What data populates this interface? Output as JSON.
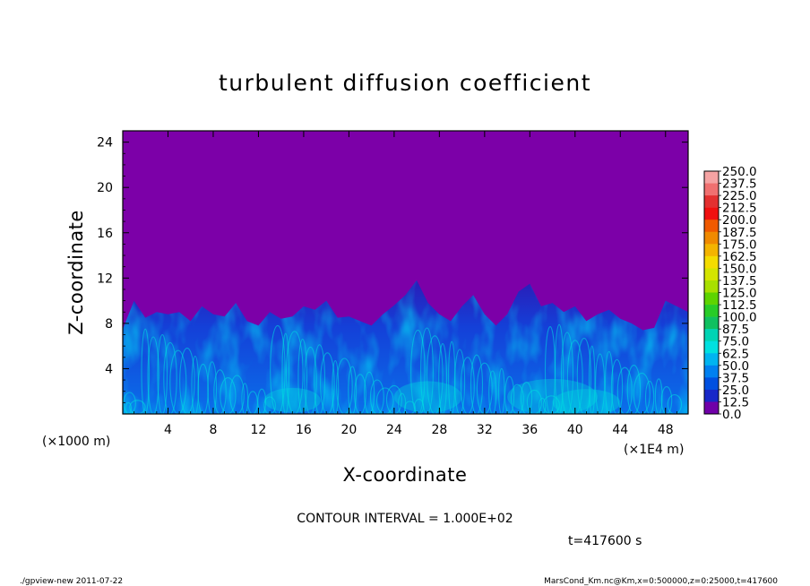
{
  "chart_data": {
    "type": "heatmap",
    "title": "turbulent diffusion coefficient",
    "xlabel": "X-coordinate",
    "ylabel": "Z-coordinate",
    "x_unit_left": "(×1000 m)",
    "x_unit_right": "(×1E4 m)",
    "x_ticks": [
      4,
      8,
      12,
      16,
      20,
      24,
      28,
      32,
      36,
      40,
      44,
      48
    ],
    "y_ticks": [
      4,
      8,
      12,
      16,
      20,
      24
    ],
    "xlim": [
      0,
      50
    ],
    "ylim": [
      0,
      25
    ],
    "colorbar": {
      "levels": [
        "250.0",
        "237.5",
        "225.0",
        "212.5",
        "200.0",
        "187.5",
        "175.0",
        "162.5",
        "150.0",
        "137.5",
        "125.0",
        "112.5",
        "100.0",
        "87.5",
        "75.0",
        "62.5",
        "50.0",
        "37.5",
        "25.0",
        "12.5",
        "0.0"
      ],
      "colors": [
        "#f5a3a3",
        "#f07070",
        "#e33030",
        "#f01010",
        "#f05a00",
        "#f08a00",
        "#f4b400",
        "#f4dc00",
        "#d4e400",
        "#a8e000",
        "#5ed400",
        "#28cc28",
        "#10c060",
        "#00d4b4",
        "#00e0e0",
        "#00b4f0",
        "#0080f0",
        "#0050e0",
        "#1828c8",
        "#3c10b0",
        "#7000a8"
      ]
    },
    "background_color": "#7c00a8",
    "field_description_colors": {
      "low": "#7c00a8",
      "mid_low": "#1a2ac8",
      "mid": "#0a60e8",
      "high": "#00e0e0"
    },
    "turbulent_layer_top_profile": [
      [
        0,
        7.5
      ],
      [
        1,
        10
      ],
      [
        2,
        8.5
      ],
      [
        3,
        9
      ],
      [
        4,
        8.8
      ],
      [
        5,
        9
      ],
      [
        6,
        8.2
      ],
      [
        7,
        9.5
      ],
      [
        8,
        8.8
      ],
      [
        9,
        8.6
      ],
      [
        10,
        9.8
      ],
      [
        11,
        8.2
      ],
      [
        12,
        7.8
      ],
      [
        13,
        9
      ],
      [
        14,
        8.4
      ],
      [
        15,
        8.6
      ],
      [
        16,
        9.5
      ],
      [
        17,
        9.2
      ],
      [
        18,
        10
      ],
      [
        19,
        8.5
      ],
      [
        20,
        8.6
      ],
      [
        21,
        8.2
      ],
      [
        22,
        7.8
      ],
      [
        23,
        8.8
      ],
      [
        24,
        9.6
      ],
      [
        25,
        10.5
      ],
      [
        26,
        11.8
      ],
      [
        27,
        9.8
      ],
      [
        28,
        8.8
      ],
      [
        29,
        8.2
      ],
      [
        30,
        9.5
      ],
      [
        31,
        10.5
      ],
      [
        32,
        8.8
      ],
      [
        33,
        7.8
      ],
      [
        34,
        8.8
      ],
      [
        35,
        10.8
      ],
      [
        36,
        11.5
      ],
      [
        37,
        9.5
      ],
      [
        38,
        9.8
      ],
      [
        39,
        9
      ],
      [
        40,
        9.5
      ],
      [
        41,
        8.2
      ],
      [
        42,
        8.8
      ],
      [
        43,
        9.2
      ],
      [
        44,
        8.4
      ],
      [
        45,
        8
      ],
      [
        46,
        7.4
      ],
      [
        47,
        7.6
      ],
      [
        48,
        10
      ],
      [
        49,
        9.5
      ],
      [
        50,
        9
      ]
    ]
  },
  "notes": {
    "contour_interval": "CONTOUR INTERVAL = 1.000E+02",
    "time": "t=417600 s"
  },
  "footer": {
    "left": "./gpview-new   2011-07-22",
    "right": "MarsCond_Km.nc@Km,x=0:500000,z=0:25000,t=417600"
  }
}
